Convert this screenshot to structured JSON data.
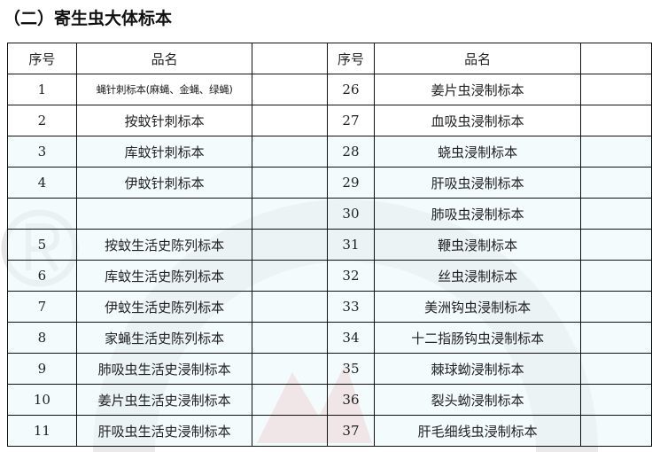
{
  "title": "（二）寄生虫大体标本",
  "header": {
    "no": "序号",
    "name": "品名"
  },
  "rows": [
    {
      "l_no": "1",
      "l_name": "蝇针刺标本(麻蝇、金蝇、绿蝇)",
      "r_no": "26",
      "r_name": "姜片虫浸制标本"
    },
    {
      "l_no": "2",
      "l_name": "按蚊针刺标本",
      "r_no": "27",
      "r_name": "血吸虫浸制标本"
    },
    {
      "l_no": "3",
      "l_name": "库蚊针刺标本",
      "r_no": "28",
      "r_name": "蛲虫浸制标本"
    },
    {
      "l_no": "4",
      "l_name": "伊蚊针刺标本",
      "r_no": "29",
      "r_name": "肝吸虫浸制标本"
    },
    {
      "l_no": "",
      "l_name": "",
      "r_no": "30",
      "r_name": "肺吸虫浸制标本"
    },
    {
      "l_no": "5",
      "l_name": "按蚊生活史陈列标本",
      "r_no": "31",
      "r_name": "鞭虫浸制标本"
    },
    {
      "l_no": "6",
      "l_name": "库蚊生活史陈列标本",
      "r_no": "32",
      "r_name": "丝虫浸制标本"
    },
    {
      "l_no": "7",
      "l_name": "伊蚊生活史陈列标本",
      "r_no": "33",
      "r_name": "美洲钩虫浸制标本"
    },
    {
      "l_no": "8",
      "l_name": "家蝇生活史陈列标本",
      "r_no": "34",
      "r_name": "十二指肠钩虫浸制标本"
    },
    {
      "l_no": "9",
      "l_name": "肺吸虫生活史浸制标本",
      "r_no": "35",
      "r_name": "棘球蚴浸制标本"
    },
    {
      "l_no": "10",
      "l_name": "姜片虫生活史浸制标本",
      "r_no": "36",
      "r_name": "裂头蚴浸制标本"
    },
    {
      "l_no": "11",
      "l_name": "肝吸虫生活史浸制标本",
      "r_no": "37",
      "r_name": "肝毛细线虫浸制标本"
    }
  ]
}
